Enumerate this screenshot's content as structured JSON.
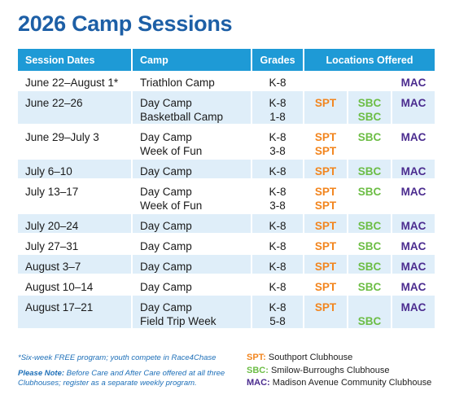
{
  "title": "2026 Camp Sessions",
  "headers": {
    "dates": "Session Dates",
    "camp": "Camp",
    "grades": "Grades",
    "locations": "Locations Offered"
  },
  "rows": [
    {
      "date": "June 22–August 1*",
      "camps": [
        "Triathlon Camp"
      ],
      "grades": [
        "K-8"
      ],
      "spt": [
        ""
      ],
      "sbc": [
        ""
      ],
      "mac": [
        "MAC"
      ],
      "alt": false
    },
    {
      "date": "June 22–26",
      "camps": [
        "Day Camp",
        "Basketball Camp"
      ],
      "grades": [
        "K-8",
        "1-8"
      ],
      "spt": [
        "SPT",
        ""
      ],
      "sbc": [
        "SBC",
        "SBC"
      ],
      "mac": [
        "MAC",
        ""
      ],
      "alt": true
    },
    {
      "date": "June 29–July 3",
      "camps": [
        "Day Camp",
        "Week of Fun"
      ],
      "grades": [
        "K-8",
        "3-8"
      ],
      "spt": [
        "SPT",
        "SPT"
      ],
      "sbc": [
        "SBC",
        ""
      ],
      "mac": [
        "MAC",
        ""
      ],
      "alt": false
    },
    {
      "date": "July 6–10",
      "camps": [
        "Day Camp"
      ],
      "grades": [
        "K-8"
      ],
      "spt": [
        "SPT"
      ],
      "sbc": [
        "SBC"
      ],
      "mac": [
        "MAC"
      ],
      "alt": true
    },
    {
      "date": "July 13–17",
      "camps": [
        "Day Camp",
        "Week of Fun"
      ],
      "grades": [
        "K-8",
        "3-8"
      ],
      "spt": [
        "SPT",
        "SPT"
      ],
      "sbc": [
        "SBC",
        ""
      ],
      "mac": [
        "MAC",
        ""
      ],
      "alt": false
    },
    {
      "date": "July 20–24",
      "camps": [
        "Day Camp"
      ],
      "grades": [
        "K-8"
      ],
      "spt": [
        "SPT"
      ],
      "sbc": [
        "SBC"
      ],
      "mac": [
        "MAC"
      ],
      "alt": true
    },
    {
      "date": "July 27–31",
      "camps": [
        "Day Camp"
      ],
      "grades": [
        "K-8"
      ],
      "spt": [
        "SPT"
      ],
      "sbc": [
        "SBC"
      ],
      "mac": [
        "MAC"
      ],
      "alt": false
    },
    {
      "date": "August 3–7",
      "camps": [
        "Day Camp"
      ],
      "grades": [
        "K-8"
      ],
      "spt": [
        "SPT"
      ],
      "sbc": [
        "SBC"
      ],
      "mac": [
        "MAC"
      ],
      "alt": true
    },
    {
      "date": "August 10–14",
      "camps": [
        "Day Camp"
      ],
      "grades": [
        "K-8"
      ],
      "spt": [
        "SPT"
      ],
      "sbc": [
        "SBC"
      ],
      "mac": [
        "MAC"
      ],
      "alt": false
    },
    {
      "date": "August 17–21",
      "camps": [
        "Day Camp",
        "Field Trip Week"
      ],
      "grades": [
        "K-8",
        "5-8"
      ],
      "spt": [
        "SPT",
        ""
      ],
      "sbc": [
        "",
        "SBC"
      ],
      "mac": [
        "MAC",
        ""
      ],
      "alt": true
    }
  ],
  "footnote": "*Six-week FREE program; youth compete in Race4Chase",
  "note": {
    "label": "Please Note:",
    "text": "Before Care and After Care offered at all three Clubhouses; register as a separate weekly program."
  },
  "legend": [
    {
      "code": "SPT:",
      "name": "Southport Clubhouse",
      "key": "spt"
    },
    {
      "code": "SBC:",
      "name": "Smilow-Burroughs Clubhouse",
      "key": "sbc"
    },
    {
      "code": "MAC:",
      "name": "Madison Avenue Community Clubhouse",
      "key": "mac"
    }
  ],
  "colors": {
    "title": "#1d5fa6",
    "header_bg": "#1e9ad6",
    "alt_row": "#dfeef9",
    "spt": "#f2851e",
    "sbc": "#6cbd45",
    "mac": "#4b2c8f"
  }
}
